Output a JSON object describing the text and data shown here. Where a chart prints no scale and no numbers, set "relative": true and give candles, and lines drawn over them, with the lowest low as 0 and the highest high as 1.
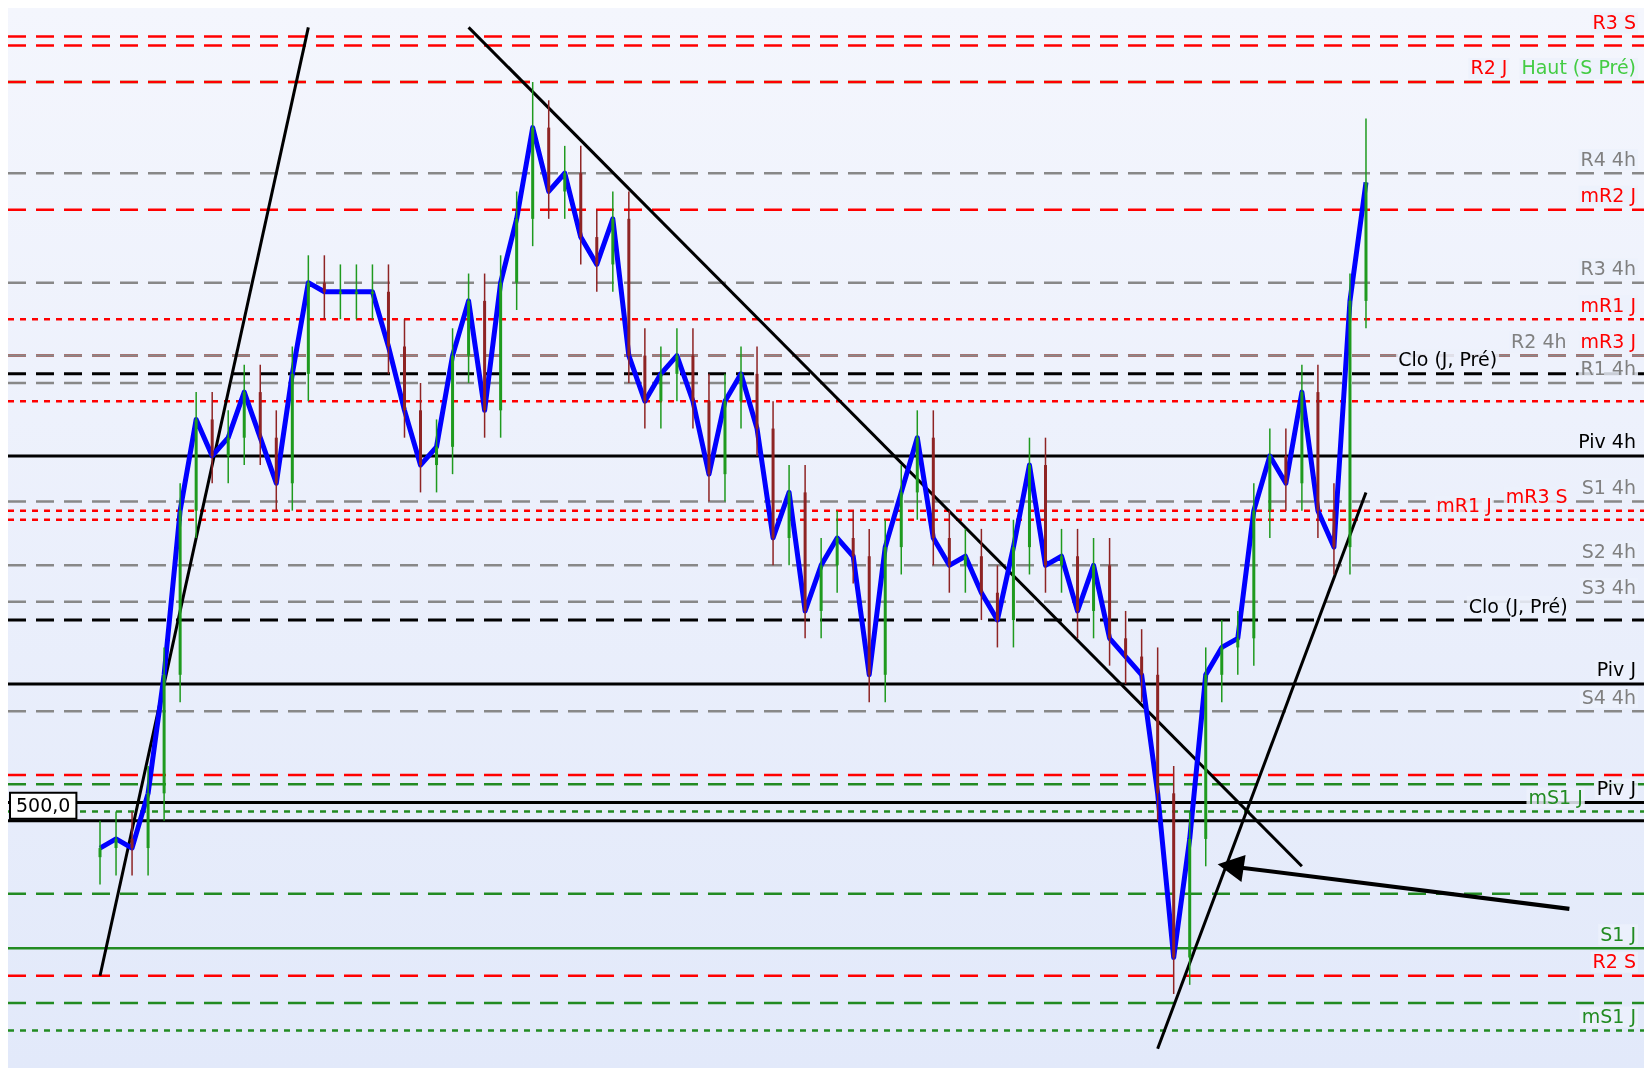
{
  "chart_data": {
    "type": "candlestick",
    "relative": true,
    "annotations": [
      "500,0"
    ],
    "categories": [
      null,
      null,
      null,
      null,
      null,
      null,
      null,
      null,
      null,
      null,
      null,
      null,
      null,
      null,
      null,
      null,
      null,
      null,
      null,
      null,
      null,
      null,
      null,
      null,
      null,
      null,
      null,
      null,
      null,
      null,
      null,
      null,
      null,
      null,
      null,
      null,
      null,
      null,
      null,
      null,
      null,
      null,
      null,
      null,
      null,
      null,
      null,
      null,
      null,
      null,
      null,
      null,
      null,
      null,
      null,
      null,
      null,
      null,
      null,
      null,
      null,
      null,
      null,
      null,
      null,
      null,
      null,
      null,
      null,
      null,
      null,
      null,
      null,
      null,
      null,
      null,
      null,
      null,
      null,
      null
    ],
    "ohlc": [
      [
        0.15,
        0.19,
        0.12,
        0.16
      ],
      [
        0.16,
        0.2,
        0.13,
        0.17
      ],
      [
        0.17,
        0.2,
        0.13,
        0.16
      ],
      [
        0.16,
        0.25,
        0.13,
        0.22
      ],
      [
        0.22,
        0.38,
        0.19,
        0.35
      ],
      [
        0.35,
        0.56,
        0.32,
        0.53
      ],
      [
        0.53,
        0.66,
        0.5,
        0.63
      ],
      [
        0.63,
        0.66,
        0.56,
        0.59
      ],
      [
        0.59,
        0.64,
        0.56,
        0.61
      ],
      [
        0.61,
        0.69,
        0.58,
        0.66
      ],
      [
        0.66,
        0.69,
        0.58,
        0.61
      ],
      [
        0.61,
        0.64,
        0.53,
        0.56
      ],
      [
        0.56,
        0.71,
        0.53,
        0.68
      ],
      [
        0.68,
        0.81,
        0.65,
        0.78
      ],
      [
        0.78,
        0.81,
        0.74,
        0.77
      ],
      [
        0.77,
        0.8,
        0.74,
        0.77
      ],
      [
        0.77,
        0.8,
        0.74,
        0.77
      ],
      [
        0.77,
        0.8,
        0.74,
        0.77
      ],
      [
        0.77,
        0.8,
        0.68,
        0.71
      ],
      [
        0.71,
        0.74,
        0.61,
        0.64
      ],
      [
        0.64,
        0.67,
        0.55,
        0.58
      ],
      [
        0.58,
        0.63,
        0.55,
        0.6
      ],
      [
        0.6,
        0.73,
        0.57,
        0.7
      ],
      [
        0.7,
        0.79,
        0.67,
        0.76
      ],
      [
        0.76,
        0.79,
        0.61,
        0.64
      ],
      [
        0.64,
        0.81,
        0.61,
        0.78
      ],
      [
        0.78,
        0.88,
        0.75,
        0.85
      ],
      [
        0.85,
        1.0,
        0.82,
        0.95
      ],
      [
        0.95,
        0.98,
        0.85,
        0.88
      ],
      [
        0.88,
        0.93,
        0.85,
        0.9
      ],
      [
        0.9,
        0.93,
        0.8,
        0.83
      ],
      [
        0.83,
        0.86,
        0.77,
        0.8
      ],
      [
        0.8,
        0.88,
        0.77,
        0.85
      ],
      [
        0.85,
        0.88,
        0.67,
        0.7
      ],
      [
        0.7,
        0.73,
        0.62,
        0.65
      ],
      [
        0.65,
        0.71,
        0.62,
        0.68
      ],
      [
        0.68,
        0.73,
        0.65,
        0.7
      ],
      [
        0.7,
        0.73,
        0.62,
        0.65
      ],
      [
        0.65,
        0.68,
        0.54,
        0.57
      ],
      [
        0.57,
        0.68,
        0.54,
        0.65
      ],
      [
        0.65,
        0.71,
        0.62,
        0.68
      ],
      [
        0.68,
        0.71,
        0.59,
        0.62
      ],
      [
        0.62,
        0.65,
        0.47,
        0.5
      ],
      [
        0.5,
        0.58,
        0.47,
        0.55
      ],
      [
        0.55,
        0.58,
        0.39,
        0.42
      ],
      [
        0.42,
        0.5,
        0.39,
        0.47
      ],
      [
        0.47,
        0.53,
        0.44,
        0.5
      ],
      [
        0.5,
        0.53,
        0.45,
        0.48
      ],
      [
        0.48,
        0.51,
        0.32,
        0.35
      ],
      [
        0.35,
        0.52,
        0.32,
        0.49
      ],
      [
        0.49,
        0.58,
        0.46,
        0.55
      ],
      [
        0.55,
        0.64,
        0.52,
        0.61
      ],
      [
        0.61,
        0.64,
        0.47,
        0.5
      ],
      [
        0.5,
        0.53,
        0.44,
        0.47
      ],
      [
        0.47,
        0.51,
        0.44,
        0.48
      ],
      [
        0.48,
        0.51,
        0.41,
        0.44
      ],
      [
        0.44,
        0.47,
        0.38,
        0.41
      ],
      [
        0.41,
        0.52,
        0.38,
        0.49
      ],
      [
        0.49,
        0.61,
        0.46,
        0.58
      ],
      [
        0.58,
        0.61,
        0.44,
        0.47
      ],
      [
        0.47,
        0.51,
        0.44,
        0.48
      ],
      [
        0.48,
        0.51,
        0.39,
        0.42
      ],
      [
        0.42,
        0.5,
        0.39,
        0.47
      ],
      [
        0.47,
        0.5,
        0.36,
        0.39
      ],
      [
        0.39,
        0.42,
        0.34,
        0.37
      ],
      [
        0.37,
        0.4,
        0.32,
        0.35
      ],
      [
        0.35,
        0.38,
        0.19,
        0.22
      ],
      [
        0.22,
        0.25,
        0.0,
        0.04
      ],
      [
        0.04,
        0.2,
        0.01,
        0.17
      ],
      [
        0.17,
        0.38,
        0.14,
        0.35
      ],
      [
        0.35,
        0.41,
        0.32,
        0.38
      ],
      [
        0.38,
        0.42,
        0.35,
        0.39
      ],
      [
        0.39,
        0.56,
        0.36,
        0.53
      ],
      [
        0.53,
        0.62,
        0.5,
        0.59
      ],
      [
        0.59,
        0.62,
        0.53,
        0.56
      ],
      [
        0.56,
        0.69,
        0.53,
        0.66
      ],
      [
        0.66,
        0.69,
        0.5,
        0.53
      ],
      [
        0.53,
        0.56,
        0.46,
        0.49
      ],
      [
        0.49,
        0.79,
        0.46,
        0.76
      ],
      [
        0.76,
        0.96,
        0.73,
        0.89
      ]
    ],
    "series": [
      {
        "type": "line",
        "color": "#0000ff",
        "values": [
          0.16,
          0.17,
          0.16,
          0.22,
          0.35,
          0.53,
          0.63,
          0.59,
          0.61,
          0.66,
          0.61,
          0.56,
          0.68,
          0.78,
          0.77,
          0.77,
          0.77,
          0.77,
          0.71,
          0.64,
          0.58,
          0.6,
          0.7,
          0.76,
          0.64,
          0.78,
          0.85,
          0.95,
          0.88,
          0.9,
          0.83,
          0.8,
          0.85,
          0.7,
          0.65,
          0.68,
          0.7,
          0.65,
          0.57,
          0.65,
          0.68,
          0.62,
          0.5,
          0.55,
          0.42,
          0.47,
          0.5,
          0.48,
          0.35,
          0.49,
          0.55,
          0.61,
          0.5,
          0.47,
          0.48,
          0.44,
          0.41,
          0.49,
          0.58,
          0.47,
          0.48,
          0.42,
          0.47,
          0.39,
          0.37,
          0.35,
          0.22,
          0.04,
          0.17,
          0.35,
          0.38,
          0.39,
          0.53,
          0.59,
          0.56,
          0.66,
          0.53,
          0.49,
          0.76,
          0.89
        ]
      },
      {
        "type": "line",
        "color": "#000000",
        "values": [
          0.02,
          null,
          null,
          null,
          null,
          null,
          null,
          null,
          null,
          null,
          null,
          null,
          null,
          1.06,
          null,
          null,
          null,
          null,
          null,
          null,
          null,
          null,
          null,
          null,
          null,
          null,
          null,
          null,
          null,
          null,
          null,
          null,
          null,
          null,
          null,
          null,
          null,
          null,
          null,
          null,
          null,
          null,
          null,
          null,
          null,
          null,
          null,
          null,
          null,
          null,
          null,
          null,
          null,
          null,
          null,
          null,
          null,
          null,
          null,
          null,
          null,
          null,
          null,
          null,
          null,
          null,
          null,
          null,
          null,
          null,
          null,
          null,
          null,
          null,
          null,
          null,
          null,
          null,
          null,
          null
        ]
      },
      {
        "type": "line",
        "color": "#000000",
        "values": [
          null,
          null,
          null,
          null,
          null,
          null,
          null,
          null,
          null,
          null,
          null,
          null,
          null,
          null,
          null,
          null,
          null,
          null,
          null,
          null,
          null,
          null,
          null,
          1.06,
          null,
          null,
          null,
          null,
          null,
          null,
          null,
          null,
          null,
          null,
          null,
          null,
          null,
          null,
          null,
          null,
          null,
          null,
          null,
          null,
          null,
          null,
          null,
          null,
          null,
          null,
          null,
          null,
          null,
          null,
          null,
          null,
          null,
          null,
          null,
          null,
          null,
          null,
          null,
          null,
          null,
          null,
          null,
          null,
          null,
          null,
          null,
          null,
          null,
          null,
          null,
          0.14,
          null,
          null,
          null,
          null
        ]
      },
      {
        "type": "line",
        "color": "#000000",
        "values": [
          null,
          null,
          null,
          null,
          null,
          null,
          null,
          null,
          null,
          null,
          null,
          null,
          null,
          null,
          null,
          null,
          null,
          null,
          null,
          null,
          null,
          null,
          null,
          null,
          null,
          null,
          null,
          null,
          null,
          null,
          null,
          null,
          null,
          null,
          null,
          null,
          null,
          null,
          null,
          null,
          null,
          null,
          null,
          null,
          null,
          null,
          null,
          null,
          null,
          null,
          null,
          null,
          null,
          null,
          null,
          null,
          null,
          null,
          null,
          null,
          null,
          null,
          null,
          null,
          null,
          null,
          -0.06,
          null,
          null,
          null,
          null,
          null,
          null,
          null,
          null,
          null,
          null,
          null,
          null,
          0.55
        ]
      }
    ],
    "ref_lines": [
      {
        "axis": "y",
        "value": 1.05,
        "label": "R3 S",
        "color": "#ff0000",
        "line_style": "dashed"
      },
      {
        "axis": "y",
        "value": 1.04,
        "color": "#ff0000",
        "line_style": "dashed"
      },
      {
        "axis": "y",
        "value": 1.0,
        "label": "Haut (S Pré)",
        "color": "#44cc44",
        "line_style": "dashed"
      },
      {
        "axis": "y",
        "value": 1.0,
        "label": "R2 J",
        "color": "#ff0000",
        "line_style": "dashed"
      },
      {
        "axis": "y",
        "value": 0.9,
        "label": "R4 4h",
        "color": "#888888",
        "line_style": "dashed"
      },
      {
        "axis": "y",
        "value": 0.86,
        "label": "mR2 J",
        "color": "#ff0000",
        "line_style": "dashed"
      },
      {
        "axis": "y",
        "value": 0.78,
        "label": "R3 4h",
        "color": "#888888",
        "line_style": "dashed"
      },
      {
        "axis": "y",
        "value": 0.74,
        "label": "mR1 J",
        "color": "#ff0000",
        "line_style": "dotted"
      },
      {
        "axis": "y",
        "value": 0.7,
        "label": "mR3 J",
        "color": "#ff0000",
        "line_style": "dashed"
      },
      {
        "axis": "y",
        "value": 0.7,
        "label": "R2 4h",
        "color": "#888888",
        "line_style": "dashed"
      },
      {
        "axis": "y",
        "value": 0.68,
        "label": "Clo (J, Pré)",
        "color": "#000000",
        "line_style": "dashed"
      },
      {
        "axis": "y",
        "value": 0.67,
        "label": "R1 4h",
        "color": "#888888",
        "line_style": "dashed"
      },
      {
        "axis": "y",
        "value": 0.65,
        "color": "#ff0000",
        "line_style": "dotted"
      },
      {
        "axis": "y",
        "value": 0.59,
        "label": "Piv 4h",
        "color": "#000000",
        "line_style": "solid"
      },
      {
        "axis": "y",
        "value": 0.54,
        "label": "S1 4h",
        "color": "#888888",
        "line_style": "dashed"
      },
      {
        "axis": "y",
        "value": 0.53,
        "label": "mR3 S",
        "color": "#ff0000",
        "line_style": "dotted"
      },
      {
        "axis": "y",
        "value": 0.52,
        "label": "mR1 J",
        "color": "#ff0000",
        "line_style": "dotted"
      },
      {
        "axis": "y",
        "value": 0.47,
        "label": "S2 4h",
        "color": "#888888",
        "line_style": "dashed"
      },
      {
        "axis": "y",
        "value": 0.43,
        "label": "S3 4h",
        "color": "#888888",
        "line_style": "dashed"
      },
      {
        "axis": "y",
        "value": 0.41,
        "label": "Clo (J, Pré)",
        "color": "#000000",
        "line_style": "dashed"
      },
      {
        "axis": "y",
        "value": 0.34,
        "label": "Piv J",
        "color": "#000000",
        "line_style": "solid"
      },
      {
        "axis": "y",
        "value": 0.31,
        "label": "S4 4h",
        "color": "#888888",
        "line_style": "dashed"
      },
      {
        "axis": "y",
        "value": 0.24,
        "color": "#ff0000",
        "line_style": "dashed"
      },
      {
        "axis": "y",
        "value": 0.23,
        "color": "#228b22",
        "line_style": "dashed"
      },
      {
        "axis": "y",
        "value": 0.21,
        "label": "Piv J",
        "color": "#000000",
        "line_style": "solid"
      },
      {
        "axis": "y",
        "value": 0.2,
        "label": "mS1 J",
        "color": "#228b22",
        "line_style": "dotted"
      },
      {
        "axis": "y",
        "value": 0.19,
        "color": "#000000",
        "line_style": "solid"
      },
      {
        "axis": "y",
        "value": 0.11,
        "color": "#228b22",
        "line_style": "dashed"
      },
      {
        "axis": "y",
        "value": 0.05,
        "label": "S1 J",
        "color": "#228b22",
        "line_style": "solid"
      },
      {
        "axis": "y",
        "value": 0.02,
        "label": "R2 S",
        "color": "#ff0000",
        "line_style": "dashed"
      },
      {
        "axis": "y",
        "value": -0.01,
        "color": "#228b22",
        "line_style": "dashed"
      },
      {
        "axis": "y",
        "value": -0.04,
        "label": "mS1 J",
        "color": "#228b22",
        "line_style": "dotted"
      }
    ]
  }
}
